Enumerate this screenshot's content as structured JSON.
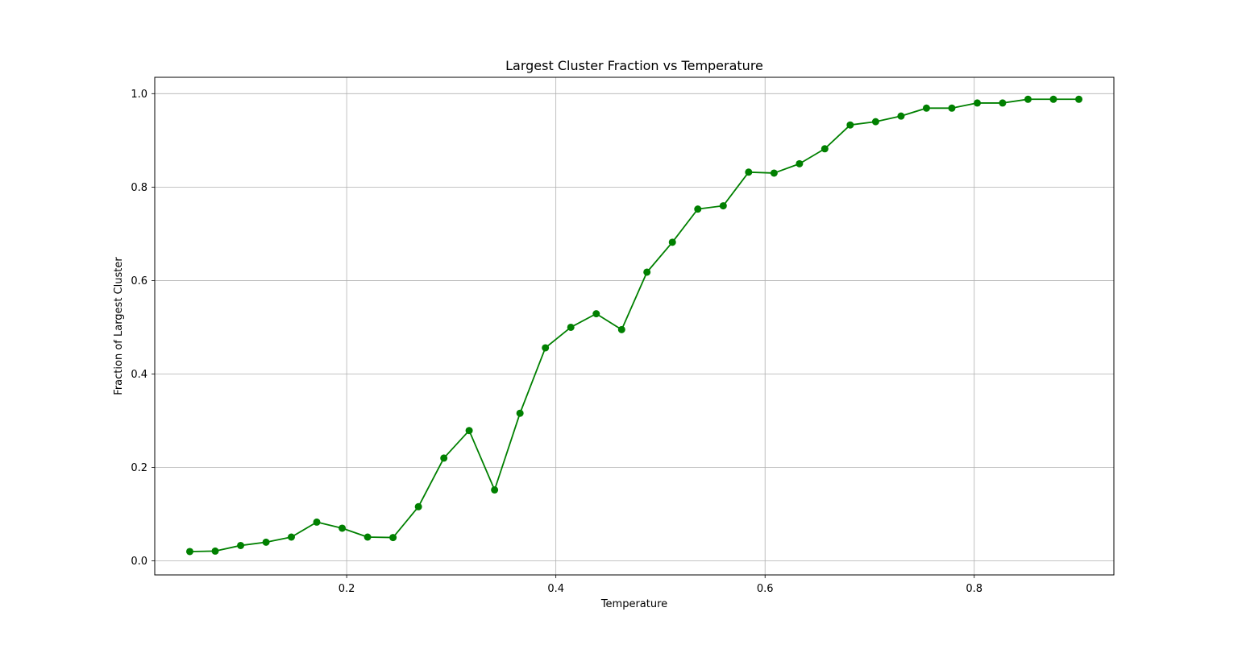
{
  "chart_data": {
    "type": "line",
    "title": "Largest Cluster Fraction vs Temperature",
    "xlabel": "Temperature",
    "ylabel": "Fraction of Largest Cluster",
    "xlim": [
      0.0165,
      0.9335
    ],
    "ylim": [
      -0.03,
      1.035
    ],
    "xticks": [
      0.2,
      0.4,
      0.6,
      0.8
    ],
    "xtick_labels": [
      "0.2",
      "0.4",
      "0.6",
      "0.8"
    ],
    "yticks": [
      0.0,
      0.2,
      0.4,
      0.6,
      0.8,
      1.0
    ],
    "ytick_labels": [
      "0.0",
      "0.2",
      "0.4",
      "0.6",
      "0.8",
      "1.0"
    ],
    "grid": true,
    "series": [
      {
        "color": "#008000",
        "marker": "circle",
        "x": [
          0.05,
          0.0743,
          0.0986,
          0.1229,
          0.1471,
          0.1714,
          0.1957,
          0.22,
          0.2443,
          0.2686,
          0.2929,
          0.3171,
          0.3414,
          0.3657,
          0.39,
          0.4143,
          0.4386,
          0.4629,
          0.4871,
          0.5114,
          0.5357,
          0.56,
          0.5843,
          0.6086,
          0.6329,
          0.6571,
          0.6814,
          0.7057,
          0.73,
          0.7543,
          0.7786,
          0.8029,
          0.8271,
          0.8514,
          0.8757,
          0.9
        ],
        "y": [
          0.02,
          0.021,
          0.033,
          0.04,
          0.051,
          0.083,
          0.07,
          0.051,
          0.05,
          0.116,
          0.22,
          0.279,
          0.152,
          0.316,
          0.456,
          0.5,
          0.529,
          0.495,
          0.618,
          0.682,
          0.753,
          0.76,
          0.832,
          0.83,
          0.85,
          0.882,
          0.933,
          0.94,
          0.952,
          0.969,
          0.969,
          0.98,
          0.98,
          0.988,
          0.988,
          0.988
        ]
      }
    ]
  }
}
